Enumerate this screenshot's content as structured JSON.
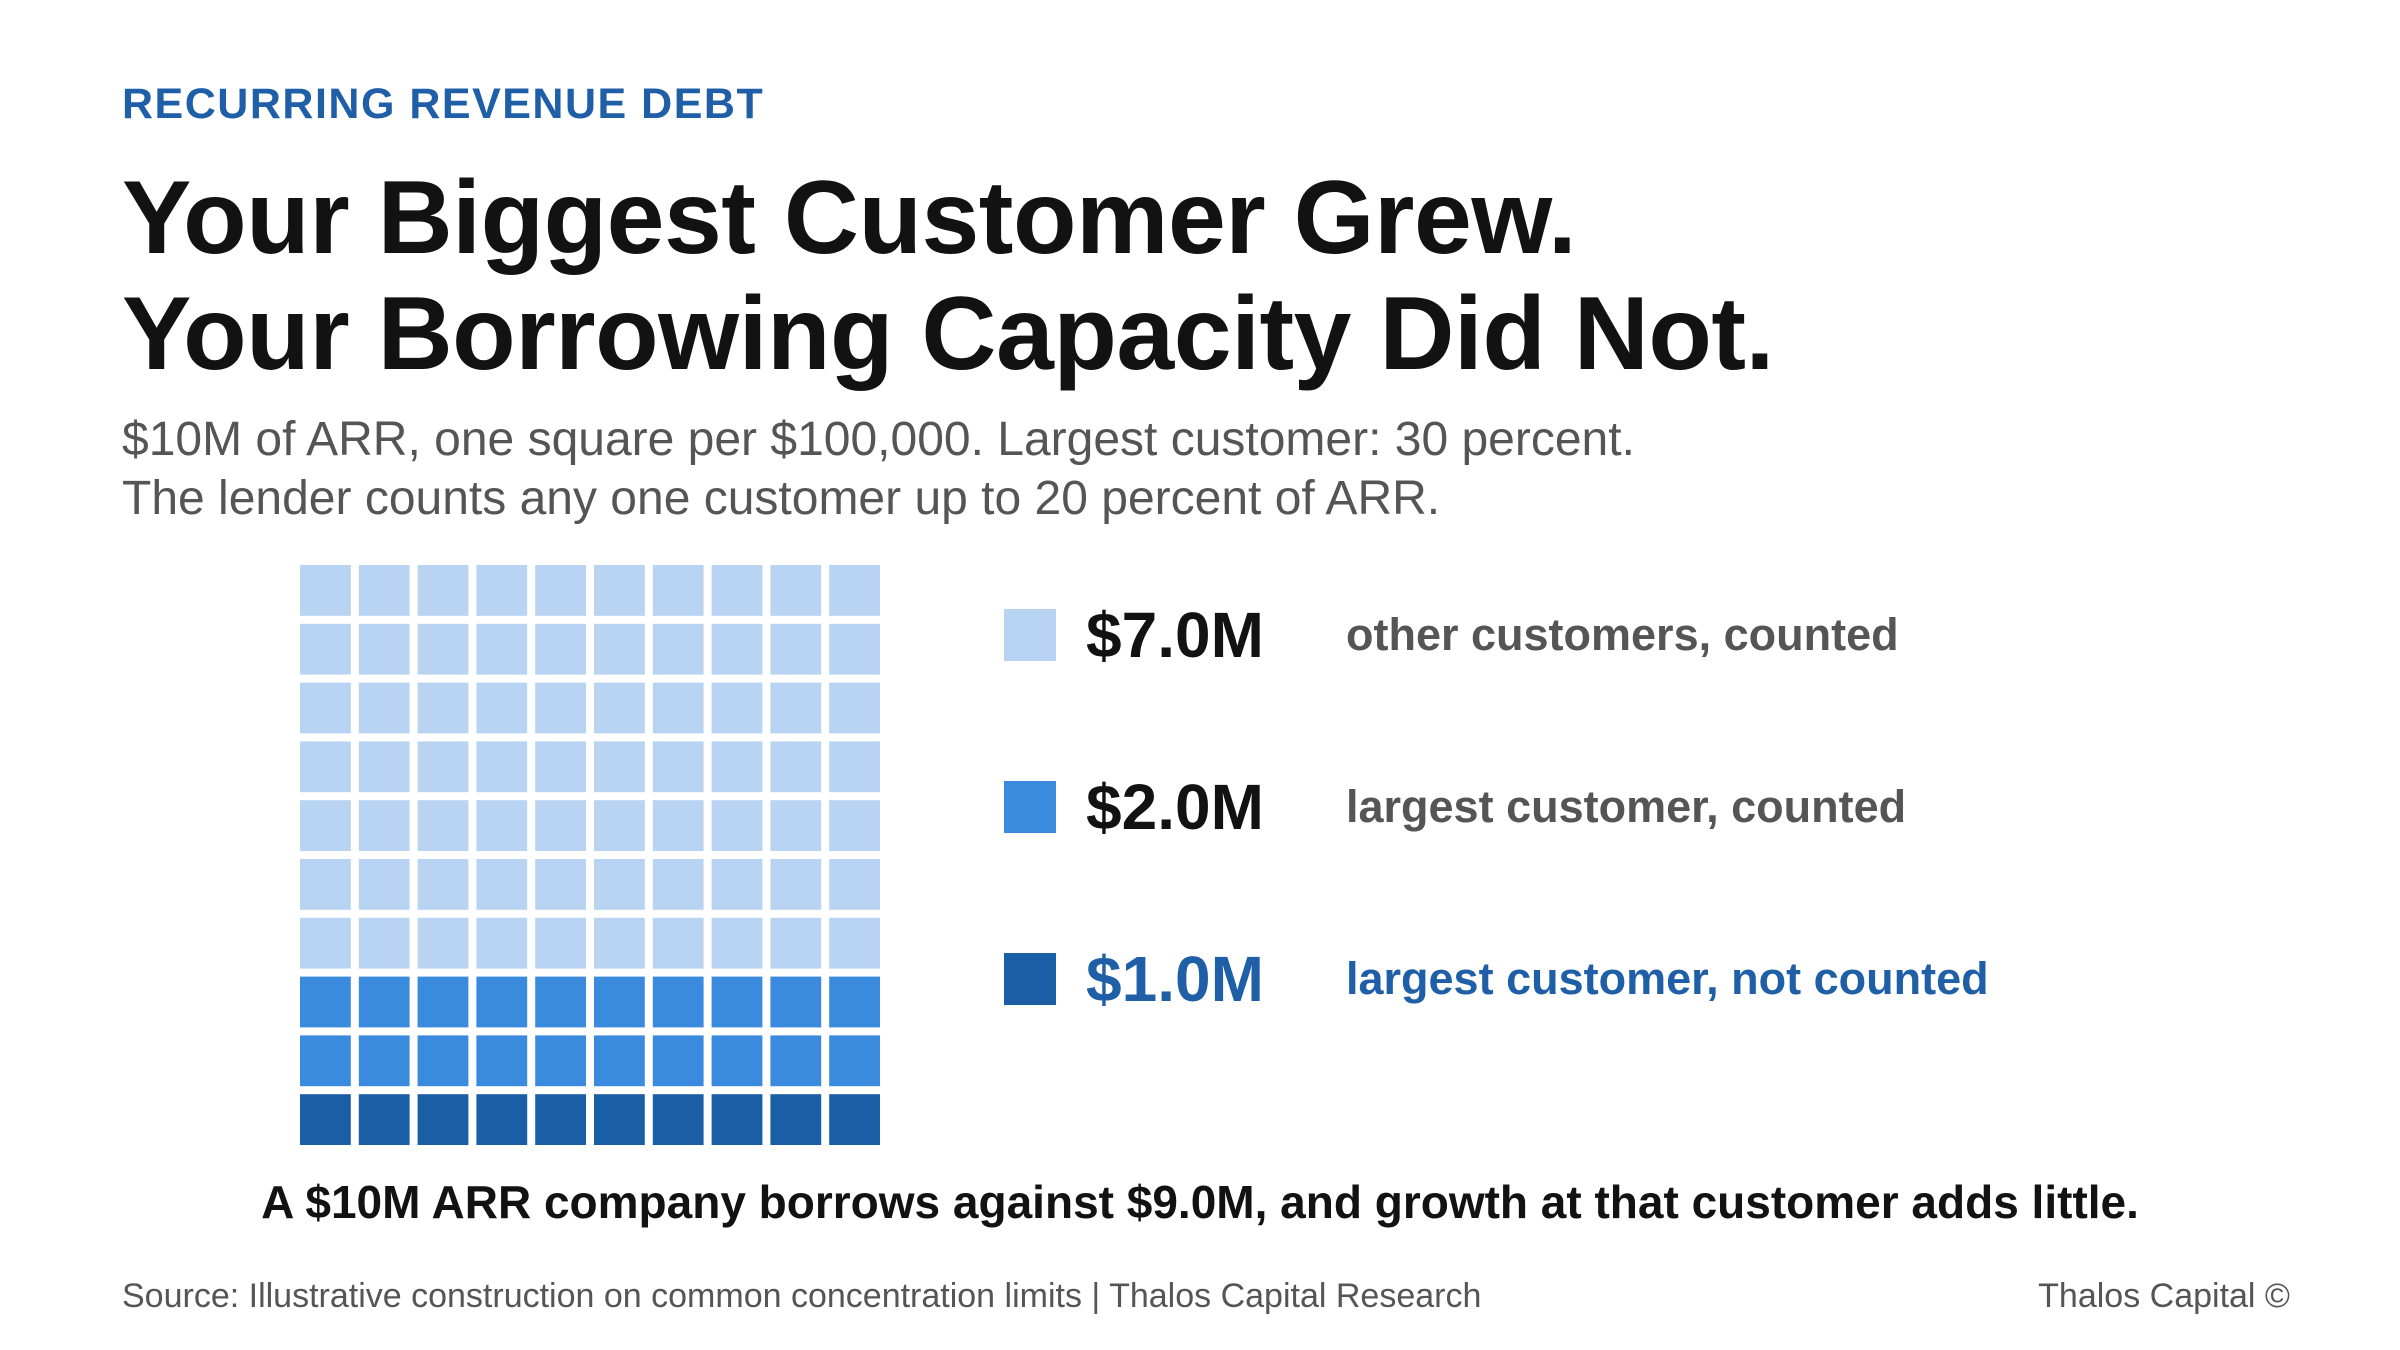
{
  "header": {
    "eyebrow": "RECURRING REVENUE DEBT",
    "title_lines": [
      "Your Biggest Customer Grew.",
      "Your Borrowing Capacity Did Not."
    ],
    "subtitle_lines": [
      "$10M of ARR, one square per $100,000. Largest customer: 30 percent.",
      "The lender counts any one customer up to 20 percent of ARR."
    ]
  },
  "chart_data": {
    "type": "waffle",
    "grid": {
      "rows": 10,
      "columns": 10,
      "unit_value": 100000
    },
    "total": 10000000,
    "series": [
      {
        "name": "other customers, counted",
        "value_label": "$7.0M",
        "value": 7000000,
        "squares": 70,
        "color": "#b8d4f2"
      },
      {
        "name": "largest customer, counted",
        "value_label": "$2.0M",
        "value": 2000000,
        "squares": 20,
        "color": "#3a8ade"
      },
      {
        "name": "largest customer, not counted",
        "value_label": "$1.0M",
        "value": 1000000,
        "squares": 10,
        "color": "#1a5ea6"
      }
    ]
  },
  "legend": {
    "items": [
      {
        "value": "$7.0M",
        "label": "other customers, counted"
      },
      {
        "value": "$2.0M",
        "label": "largest customer, counted"
      },
      {
        "value": "$1.0M",
        "label": "largest customer, not counted"
      }
    ]
  },
  "takeaway": "A $10M ARR company borrows against $9.0M, and growth at that customer adds little.",
  "footer": {
    "source": "Source: Illustrative construction on common concentration limits | Thalos Capital Research",
    "brand": "Thalos Capital ©"
  }
}
